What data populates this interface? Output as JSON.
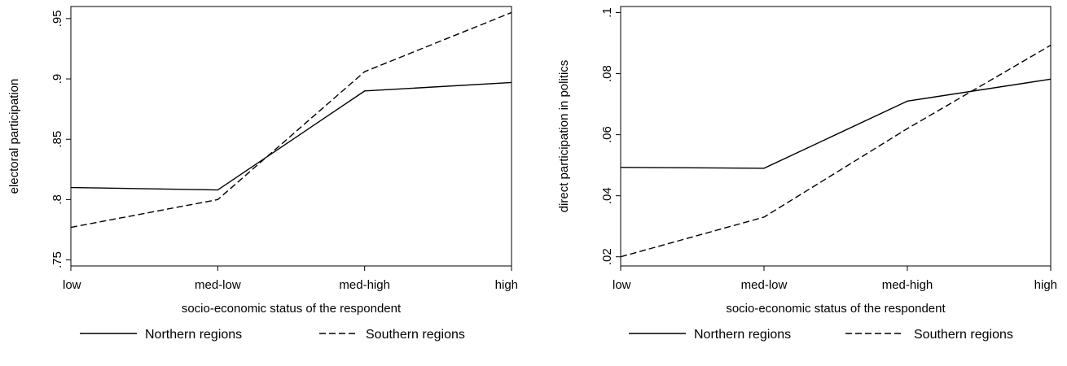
{
  "chart_data": [
    {
      "type": "line",
      "categories": [
        "low",
        "med-low",
        "med-high",
        "high"
      ],
      "xlabel": "socio-economic status of the respondent",
      "ylabel": "electoral participation",
      "ylim": [
        0.745,
        0.96
      ],
      "yticks": [
        ".75",
        ".8",
        ".85",
        ".9",
        ".95"
      ],
      "ytick_values": [
        0.75,
        0.8,
        0.85,
        0.9,
        0.95
      ],
      "grid": false,
      "legend_position": "bottom",
      "series": [
        {
          "name": "Northern regions",
          "style": "solid",
          "values": [
            0.81,
            0.808,
            0.89,
            0.897
          ]
        },
        {
          "name": "Southern regions",
          "style": "dashed",
          "values": [
            0.777,
            0.8,
            0.906,
            0.955
          ]
        }
      ]
    },
    {
      "type": "line",
      "categories": [
        "low",
        "med-low",
        "med-high",
        "high"
      ],
      "xlabel": "socio-economic status of the respondent",
      "ylabel": "direct participation in politics",
      "ylim": [
        0.017,
        0.102
      ],
      "yticks": [
        ".02",
        ".04",
        ".06",
        ".08",
        ".1"
      ],
      "ytick_values": [
        0.02,
        0.04,
        0.06,
        0.08,
        0.1
      ],
      "grid": false,
      "legend_position": "bottom",
      "series": [
        {
          "name": "Northern regions",
          "style": "solid",
          "values": [
            0.0493,
            0.049,
            0.071,
            0.0782
          ]
        },
        {
          "name": "Southern regions",
          "style": "dashed",
          "values": [
            0.02,
            0.033,
            0.062,
            0.0893
          ]
        }
      ]
    }
  ],
  "colors": {
    "line": "#000000",
    "background": "#ffffff"
  }
}
